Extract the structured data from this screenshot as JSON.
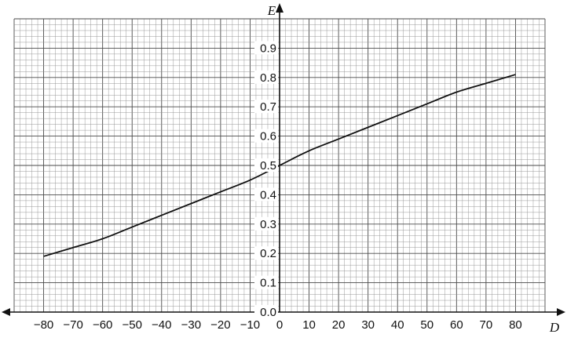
{
  "chart_data": {
    "type": "line",
    "xlabel": "D",
    "ylabel": "E",
    "xlim": [
      -90,
      90
    ],
    "ylim": [
      0,
      1.0
    ],
    "x_ticks": [
      -80,
      -70,
      -60,
      -50,
      -40,
      -30,
      -20,
      -10,
      0,
      10,
      20,
      30,
      40,
      50,
      60,
      70,
      80
    ],
    "y_ticks": [
      0.1,
      0.2,
      0.3,
      0.4,
      0.5,
      0.6,
      0.7,
      0.8,
      0.9
    ],
    "origin_label": "0.0",
    "x_tick_labels": [
      "−80",
      "−70",
      "−60",
      "−50",
      "−40",
      "−30",
      "−20",
      "−10",
      "0",
      "10",
      "20",
      "30",
      "40",
      "50",
      "60",
      "70",
      "80"
    ],
    "y_tick_labels": [
      "0.1",
      "0.2",
      "0.3",
      "0.4",
      "0.5",
      "0.6",
      "0.7",
      "0.8",
      "0.9"
    ],
    "grid": true,
    "series": [
      {
        "x": [
          -80,
          -70,
          -60,
          -50,
          -40,
          -30,
          -20,
          -10,
          0,
          10,
          20,
          30,
          40,
          50,
          60,
          70,
          80
        ],
        "y": [
          0.19,
          0.22,
          0.25,
          0.29,
          0.33,
          0.37,
          0.41,
          0.45,
          0.5,
          0.55,
          0.59,
          0.63,
          0.67,
          0.71,
          0.75,
          0.78,
          0.81
        ]
      }
    ],
    "colors": {
      "curve": "#111111",
      "grid_minor": "#8f8f8f",
      "grid_major": "#4a4a4a",
      "axis": "#111111"
    }
  }
}
